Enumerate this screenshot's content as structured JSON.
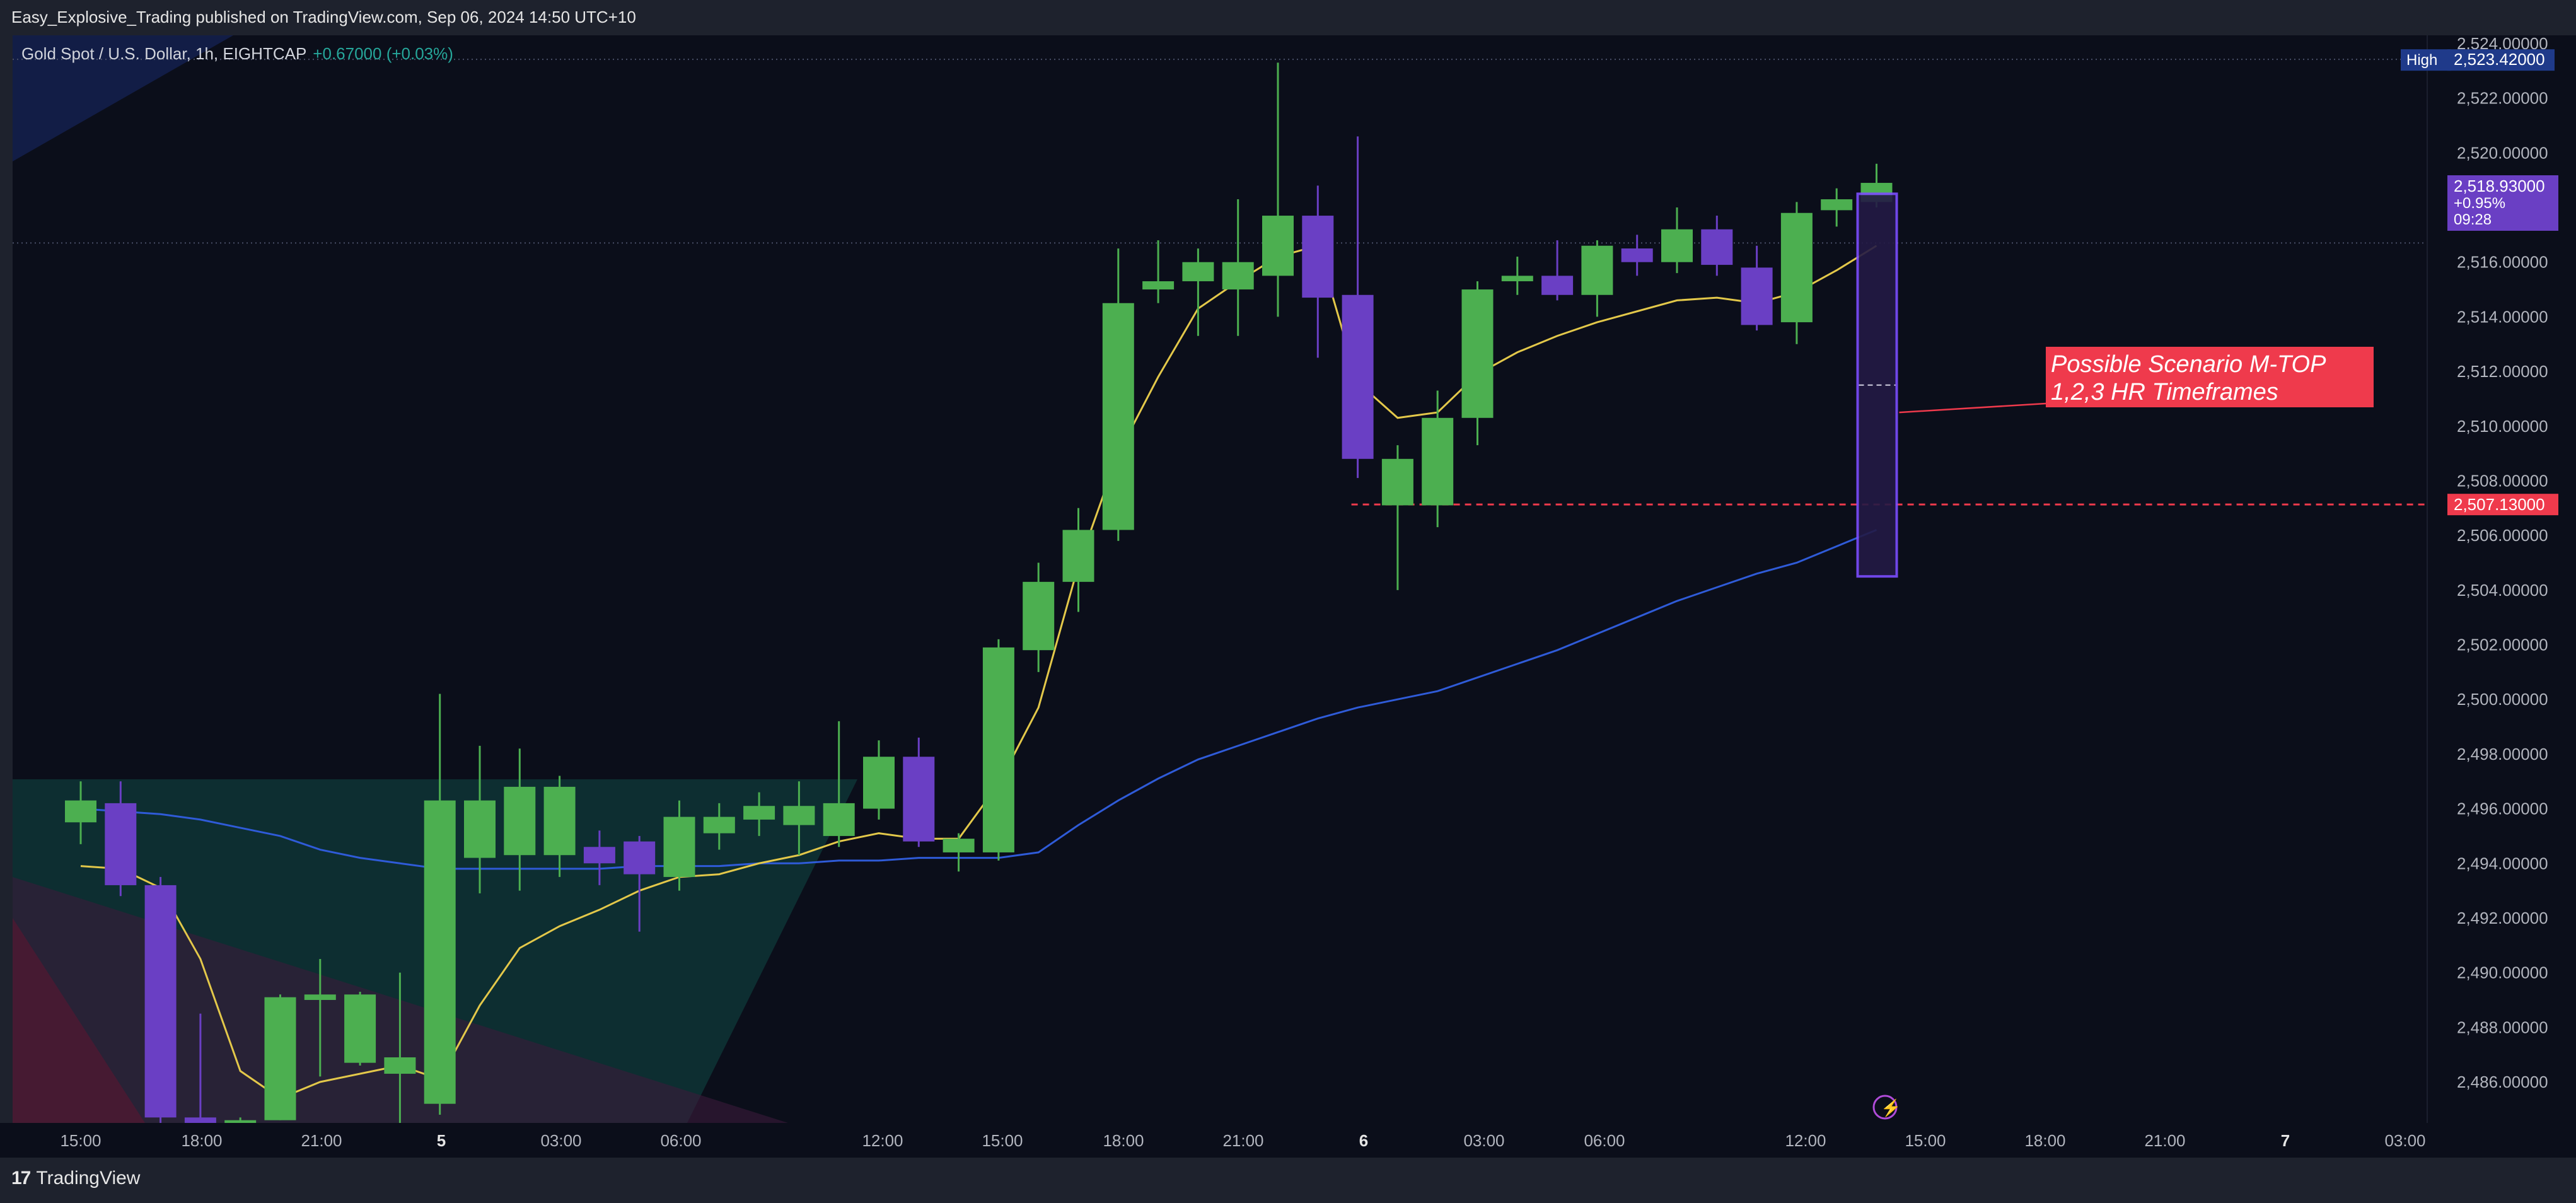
{
  "header": {
    "published": "Easy_Explosive_Trading published on TradingView.com, Sep 06, 2024 14:50 UTC+10"
  },
  "symbol": {
    "name": "Gold Spot / U.S. Dollar, 1h, EIGHTCAP",
    "change": "+0.67000 (+0.03%)"
  },
  "footer": {
    "brand": "TradingView"
  },
  "colors": {
    "background": "#0b0e1a",
    "bull": "#4caf50",
    "bear": "#6a3fc4",
    "ema_fast": "#e3c84a",
    "ema_slow": "#2f5bd8",
    "alert": "#ef3a4c"
  },
  "chart_data": {
    "type": "candlestick",
    "ylim": [
      2484.5,
      2524.3
    ],
    "y_ticks": [
      "2,486.00000",
      "2,488.00000",
      "2,490.00000",
      "2,492.00000",
      "2,494.00000",
      "2,496.00000",
      "2,498.00000",
      "2,500.00000",
      "2,502.00000",
      "2,504.00000",
      "2,506.00000",
      "2,508.00000",
      "2,510.00000",
      "2,512.00000",
      "2,514.00000",
      "2,516.00000",
      "2,518.00000",
      "2,520.00000",
      "2,522.00000",
      "2,524.00000"
    ],
    "x_ticks": [
      "15:00",
      "18:00",
      "21:00",
      "5",
      "03:00",
      "06:00",
      "12:00",
      "15:00",
      "18:00",
      "21:00",
      "6",
      "03:00",
      "06:00",
      "12:00",
      "15:00",
      "18:00",
      "21:00",
      "7",
      "03:00"
    ],
    "candles": [
      {
        "o": 2495.5,
        "h": 2497.0,
        "l": 2494.7,
        "c": 2496.3
      },
      {
        "o": 2496.2,
        "h": 2497.0,
        "l": 2492.8,
        "c": 2493.2
      },
      {
        "o": 2493.2,
        "h": 2493.5,
        "l": 2484.5,
        "c": 2484.7
      },
      {
        "o": 2484.7,
        "h": 2488.5,
        "l": 2484.5,
        "c": 2484.5
      },
      {
        "o": 2484.5,
        "h": 2484.7,
        "l": 2484.5,
        "c": 2484.6
      },
      {
        "o": 2484.6,
        "h": 2489.2,
        "l": 2484.6,
        "c": 2489.1
      },
      {
        "o": 2489.0,
        "h": 2490.5,
        "l": 2486.2,
        "c": 2489.2
      },
      {
        "o": 2486.7,
        "h": 2489.3,
        "l": 2486.6,
        "c": 2489.2
      },
      {
        "o": 2486.3,
        "h": 2490.0,
        "l": 2484.5,
        "c": 2486.9
      },
      {
        "o": 2485.2,
        "h": 2500.2,
        "l": 2484.8,
        "c": 2496.3
      },
      {
        "o": 2494.2,
        "h": 2498.3,
        "l": 2492.9,
        "c": 2496.3
      },
      {
        "o": 2494.3,
        "h": 2498.2,
        "l": 2493.0,
        "c": 2496.8
      },
      {
        "o": 2494.3,
        "h": 2497.2,
        "l": 2493.5,
        "c": 2496.8
      },
      {
        "o": 2494.6,
        "h": 2495.2,
        "l": 2493.2,
        "c": 2494.0
      },
      {
        "o": 2494.8,
        "h": 2495.0,
        "l": 2491.5,
        "c": 2493.6
      },
      {
        "o": 2493.5,
        "h": 2496.3,
        "l": 2493.0,
        "c": 2495.7
      },
      {
        "o": 2495.1,
        "h": 2496.2,
        "l": 2494.5,
        "c": 2495.7
      },
      {
        "o": 2495.6,
        "h": 2496.6,
        "l": 2495.0,
        "c": 2496.1
      },
      {
        "o": 2495.4,
        "h": 2497.0,
        "l": 2494.3,
        "c": 2496.1
      },
      {
        "o": 2495.0,
        "h": 2499.2,
        "l": 2494.6,
        "c": 2496.2
      },
      {
        "o": 2496.0,
        "h": 2498.5,
        "l": 2495.6,
        "c": 2497.9
      },
      {
        "o": 2497.9,
        "h": 2498.6,
        "l": 2494.6,
        "c": 2494.8
      },
      {
        "o": 2494.4,
        "h": 2495.1,
        "l": 2493.7,
        "c": 2494.9
      },
      {
        "o": 2494.4,
        "h": 2502.2,
        "l": 2494.1,
        "c": 2501.9
      },
      {
        "o": 2501.8,
        "h": 2505.0,
        "l": 2501.0,
        "c": 2504.3
      },
      {
        "o": 2504.3,
        "h": 2507.0,
        "l": 2503.2,
        "c": 2506.2
      },
      {
        "o": 2506.2,
        "h": 2516.5,
        "l": 2505.8,
        "c": 2514.5
      },
      {
        "o": 2515.0,
        "h": 2516.8,
        "l": 2514.5,
        "c": 2515.3
      },
      {
        "o": 2515.3,
        "h": 2516.5,
        "l": 2513.3,
        "c": 2516.0
      },
      {
        "o": 2515.0,
        "h": 2518.3,
        "l": 2513.3,
        "c": 2516.0
      },
      {
        "o": 2515.5,
        "h": 2523.3,
        "l": 2514.0,
        "c": 2517.7
      },
      {
        "o": 2517.7,
        "h": 2518.8,
        "l": 2512.5,
        "c": 2514.7
      },
      {
        "o": 2514.8,
        "h": 2520.6,
        "l": 2508.1,
        "c": 2508.8
      },
      {
        "o": 2507.1,
        "h": 2509.3,
        "l": 2504.0,
        "c": 2508.8
      },
      {
        "o": 2507.1,
        "h": 2511.3,
        "l": 2506.3,
        "c": 2510.3
      },
      {
        "o": 2510.3,
        "h": 2515.3,
        "l": 2509.3,
        "c": 2515.0
      },
      {
        "o": 2515.3,
        "h": 2516.2,
        "l": 2514.8,
        "c": 2515.5
      },
      {
        "o": 2515.5,
        "h": 2516.8,
        "l": 2514.6,
        "c": 2514.8
      },
      {
        "o": 2514.8,
        "h": 2516.8,
        "l": 2514.0,
        "c": 2516.6
      },
      {
        "o": 2516.5,
        "h": 2517.0,
        "l": 2515.5,
        "c": 2516.0
      },
      {
        "o": 2516.0,
        "h": 2518.0,
        "l": 2515.6,
        "c": 2517.2
      },
      {
        "o": 2517.2,
        "h": 2517.7,
        "l": 2515.5,
        "c": 2515.9
      },
      {
        "o": 2515.8,
        "h": 2516.6,
        "l": 2513.5,
        "c": 2513.7
      },
      {
        "o": 2513.8,
        "h": 2518.2,
        "l": 2513.0,
        "c": 2517.8
      },
      {
        "o": 2517.9,
        "h": 2518.7,
        "l": 2517.3,
        "c": 2518.3
      },
      {
        "o": 2518.2,
        "h": 2519.6,
        "l": 2518.0,
        "c": 2518.9
      }
    ],
    "ema_fast": [
      2493.9,
      2493.8,
      2493.1,
      2490.5,
      2486.4,
      2485.4,
      2486.0,
      2486.3,
      2486.6,
      2486.1,
      2488.8,
      2490.9,
      2491.7,
      2492.3,
      2493.0,
      2493.5,
      2493.6,
      2494.0,
      2494.3,
      2494.8,
      2495.1,
      2494.9,
      2494.9,
      2496.9,
      2499.7,
      2504.9,
      2509.0,
      2511.8,
      2514.3,
      2515.3,
      2516.2,
      2516.6,
      2511.6,
      2510.3,
      2510.5,
      2511.9,
      2512.7,
      2513.3,
      2513.8,
      2514.2,
      2514.6,
      2514.7,
      2514.5,
      2514.9,
      2515.7,
      2516.6
    ],
    "ema_slow": [
      2496.0,
      2495.9,
      2495.8,
      2495.6,
      2495.3,
      2495.0,
      2494.5,
      2494.2,
      2494.0,
      2493.8,
      2493.8,
      2493.8,
      2493.8,
      2493.8,
      2493.9,
      2493.9,
      2493.9,
      2494.0,
      2494.0,
      2494.1,
      2494.1,
      2494.2,
      2494.2,
      2494.2,
      2494.4,
      2495.4,
      2496.3,
      2497.1,
      2497.8,
      2498.3,
      2498.8,
      2499.3,
      2499.7,
      2500.0,
      2500.3,
      2500.8,
      2501.3,
      2501.8,
      2502.4,
      2503.0,
      2503.6,
      2504.1,
      2504.6,
      2505.0,
      2505.6,
      2506.2
    ],
    "levels": {
      "high": 2523.42,
      "dashed": 2516.7,
      "support": 2507.13
    },
    "price_labels": {
      "high_tag": "High",
      "high_value": "2,523.42000",
      "last_price": "2,518.93000",
      "last_change": "+0.95%",
      "countdown": "09:28",
      "support_value": "2,507.13000"
    },
    "annotation": {
      "line1": "Possible Scenario M-TOP",
      "line2": "1,2,3 HR Timeframes"
    }
  }
}
